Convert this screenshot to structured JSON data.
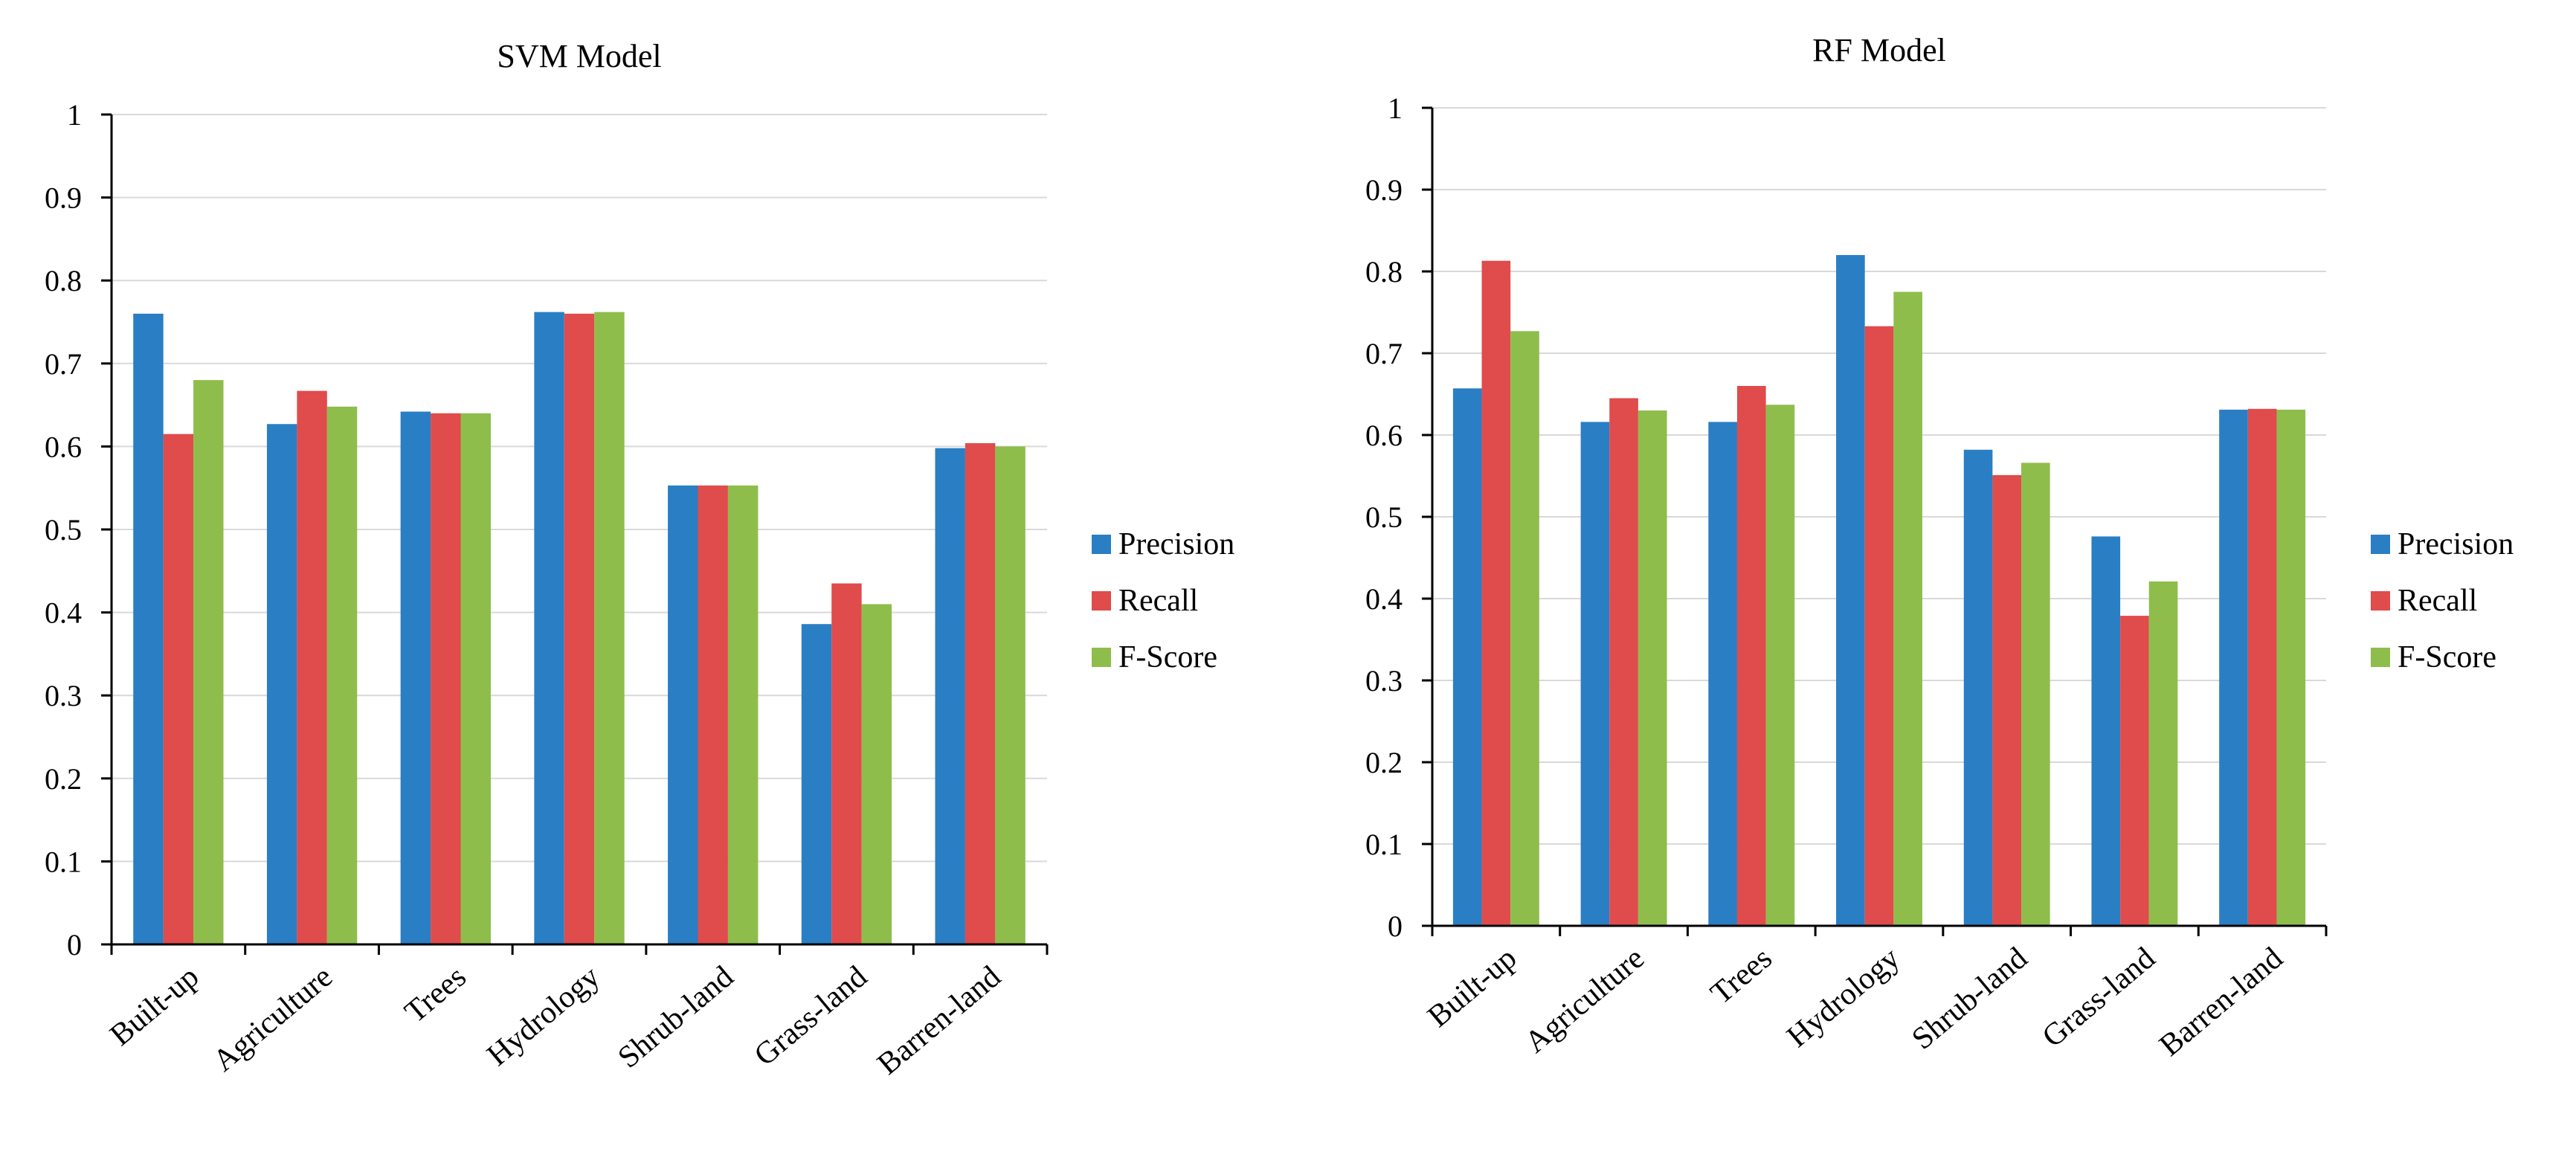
{
  "colors": {
    "precision": "#2a7ec4",
    "recall": "#e04b4b",
    "fscore": "#8ebd4c",
    "grid": "#d9d9d9",
    "axis": "#000000"
  },
  "chart_data": [
    {
      "type": "bar",
      "title": "SVM Model",
      "xlabel": "",
      "ylabel": "",
      "ylim": [
        0,
        1
      ],
      "yticks": [
        "0",
        "0.1",
        "0.2",
        "0.3",
        "0.4",
        "0.5",
        "0.6",
        "0.7",
        "0.8",
        "0.9",
        "1"
      ],
      "grid": true,
      "legend_position": "right",
      "categories": [
        "Built-up",
        "Agriculture",
        "Trees",
        "Hydrology",
        "Shrub-land",
        "Grass-land",
        "Barren-land"
      ],
      "series": [
        {
          "name": "Precision",
          "color_key": "precision",
          "values": [
            0.76,
            0.627,
            0.642,
            0.762,
            0.553,
            0.386,
            0.598
          ]
        },
        {
          "name": "Recall",
          "color_key": "recall",
          "values": [
            0.615,
            0.667,
            0.64,
            0.76,
            0.553,
            0.435,
            0.604
          ]
        },
        {
          "name": "F-Score",
          "color_key": "fscore",
          "values": [
            0.68,
            0.648,
            0.64,
            0.762,
            0.553,
            0.41,
            0.6
          ]
        }
      ]
    },
    {
      "type": "bar",
      "title": "RF Model",
      "xlabel": "",
      "ylabel": "",
      "ylim": [
        0,
        1
      ],
      "yticks": [
        "0",
        "0.1",
        "0.2",
        "0.3",
        "0.4",
        "0.5",
        "0.6",
        "0.7",
        "0.8",
        "0.9",
        "1"
      ],
      "grid": true,
      "legend_position": "right",
      "categories": [
        "Built-up",
        "Agriculture",
        "Trees",
        "Hydrology",
        "Shrub-land",
        "Grass-land",
        "Barren-land"
      ],
      "series": [
        {
          "name": "Precision",
          "color_key": "precision",
          "values": [
            0.657,
            0.616,
            0.616,
            0.82,
            0.582,
            0.476,
            0.631
          ]
        },
        {
          "name": "Recall",
          "color_key": "recall",
          "values": [
            0.813,
            0.645,
            0.66,
            0.733,
            0.551,
            0.379,
            0.632
          ]
        },
        {
          "name": "F-Score",
          "color_key": "fscore",
          "values": [
            0.727,
            0.63,
            0.637,
            0.775,
            0.566,
            0.421,
            0.631
          ]
        }
      ]
    }
  ]
}
